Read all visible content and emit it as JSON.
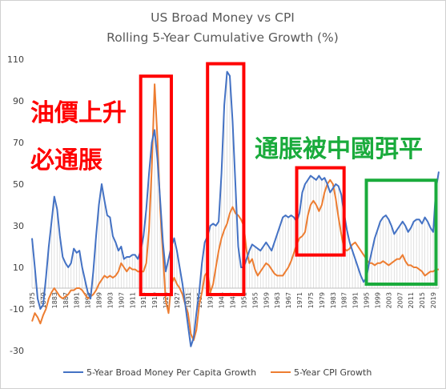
{
  "chart_data": {
    "type": "line",
    "title": "US Broad Money vs CPI",
    "subtitle": "Rolling 5-Year Cumulative Growth (%)",
    "ylim": [
      -30,
      110
    ],
    "yticks": [
      -30,
      -10,
      10,
      30,
      50,
      70,
      90,
      110
    ],
    "xlim": [
      1875,
      2021
    ],
    "xticks": [
      1875,
      1879,
      1883,
      1887,
      1891,
      1895,
      1899,
      1903,
      1907,
      1911,
      1915,
      1919,
      1923,
      1927,
      1931,
      1935,
      1939,
      1943,
      1947,
      1951,
      1955,
      1959,
      1963,
      1967,
      1971,
      1975,
      1979,
      1983,
      1987,
      1991,
      1995,
      1999,
      2003,
      2007,
      2011,
      2015,
      2019
    ],
    "grid": false,
    "legend_position": "bottom",
    "series": [
      {
        "name": "5-Year Broad Money Per Capita Growth",
        "color": "#4472c4",
        "points": [
          [
            1875,
            24
          ],
          [
            1876,
            10
          ],
          [
            1877,
            -5
          ],
          [
            1878,
            -10
          ],
          [
            1879,
            -8
          ],
          [
            1880,
            5
          ],
          [
            1881,
            20
          ],
          [
            1882,
            32
          ],
          [
            1883,
            44
          ],
          [
            1884,
            38
          ],
          [
            1885,
            25
          ],
          [
            1886,
            15
          ],
          [
            1887,
            12
          ],
          [
            1888,
            10
          ],
          [
            1889,
            12
          ],
          [
            1890,
            19
          ],
          [
            1891,
            17
          ],
          [
            1892,
            18
          ],
          [
            1893,
            10
          ],
          [
            1894,
            4
          ],
          [
            1895,
            -2
          ],
          [
            1896,
            -5
          ],
          [
            1897,
            8
          ],
          [
            1898,
            25
          ],
          [
            1899,
            40
          ],
          [
            1900,
            50
          ],
          [
            1901,
            42
          ],
          [
            1902,
            35
          ],
          [
            1903,
            34
          ],
          [
            1904,
            25
          ],
          [
            1905,
            22
          ],
          [
            1906,
            18
          ],
          [
            1907,
            20
          ],
          [
            1908,
            14
          ],
          [
            1909,
            15
          ],
          [
            1910,
            15
          ],
          [
            1911,
            16
          ],
          [
            1912,
            16
          ],
          [
            1913,
            14
          ],
          [
            1914,
            18
          ],
          [
            1915,
            25
          ],
          [
            1916,
            38
          ],
          [
            1917,
            55
          ],
          [
            1918,
            70
          ],
          [
            1919,
            76
          ],
          [
            1920,
            62
          ],
          [
            1921,
            42
          ],
          [
            1922,
            22
          ],
          [
            1923,
            8
          ],
          [
            1924,
            14
          ],
          [
            1925,
            20
          ],
          [
            1926,
            24
          ],
          [
            1927,
            18
          ],
          [
            1928,
            10
          ],
          [
            1929,
            2
          ],
          [
            1930,
            -8
          ],
          [
            1931,
            -18
          ],
          [
            1932,
            -28
          ],
          [
            1933,
            -24
          ],
          [
            1934,
            -12
          ],
          [
            1935,
            -2
          ],
          [
            1936,
            12
          ],
          [
            1937,
            22
          ],
          [
            1938,
            25
          ],
          [
            1939,
            30
          ],
          [
            1940,
            31
          ],
          [
            1941,
            30
          ],
          [
            1942,
            32
          ],
          [
            1943,
            55
          ],
          [
            1944,
            88
          ],
          [
            1945,
            104
          ],
          [
            1946,
            102
          ],
          [
            1947,
            80
          ],
          [
            1948,
            50
          ],
          [
            1949,
            20
          ],
          [
            1950,
            10
          ],
          [
            1951,
            10
          ],
          [
            1952,
            14
          ],
          [
            1953,
            18
          ],
          [
            1954,
            21
          ],
          [
            1955,
            20
          ],
          [
            1956,
            19
          ],
          [
            1957,
            18
          ],
          [
            1958,
            20
          ],
          [
            1959,
            22
          ],
          [
            1960,
            20
          ],
          [
            1961,
            18
          ],
          [
            1962,
            22
          ],
          [
            1963,
            26
          ],
          [
            1964,
            30
          ],
          [
            1965,
            34
          ],
          [
            1966,
            35
          ],
          [
            1967,
            34
          ],
          [
            1968,
            35
          ],
          [
            1969,
            34
          ],
          [
            1970,
            32
          ],
          [
            1971,
            36
          ],
          [
            1972,
            46
          ],
          [
            1973,
            50
          ],
          [
            1974,
            52
          ],
          [
            1975,
            54
          ],
          [
            1976,
            53
          ],
          [
            1977,
            52
          ],
          [
            1978,
            54
          ],
          [
            1979,
            52
          ],
          [
            1980,
            53
          ],
          [
            1981,
            50
          ],
          [
            1982,
            46
          ],
          [
            1983,
            48
          ],
          [
            1984,
            50
          ],
          [
            1985,
            49
          ],
          [
            1986,
            45
          ],
          [
            1987,
            36
          ],
          [
            1988,
            28
          ],
          [
            1989,
            22
          ],
          [
            1990,
            18
          ],
          [
            1991,
            14
          ],
          [
            1992,
            10
          ],
          [
            1993,
            6
          ],
          [
            1994,
            3
          ],
          [
            1995,
            5
          ],
          [
            1996,
            12
          ],
          [
            1997,
            18
          ],
          [
            1998,
            24
          ],
          [
            1999,
            28
          ],
          [
            2000,
            32
          ],
          [
            2001,
            34
          ],
          [
            2002,
            35
          ],
          [
            2003,
            33
          ],
          [
            2004,
            30
          ],
          [
            2005,
            26
          ],
          [
            2006,
            28
          ],
          [
            2007,
            30
          ],
          [
            2008,
            32
          ],
          [
            2009,
            30
          ],
          [
            2010,
            27
          ],
          [
            2011,
            29
          ],
          [
            2012,
            32
          ],
          [
            2013,
            33
          ],
          [
            2014,
            33
          ],
          [
            2015,
            31
          ],
          [
            2016,
            34
          ],
          [
            2017,
            32
          ],
          [
            2018,
            29
          ],
          [
            2019,
            27
          ],
          [
            2020,
            48
          ],
          [
            2021,
            56
          ]
        ]
      },
      {
        "name": "5-Year CPI Growth",
        "color": "#ed7d31",
        "points": [
          [
            1875,
            -16
          ],
          [
            1876,
            -12
          ],
          [
            1877,
            -14
          ],
          [
            1878,
            -17
          ],
          [
            1879,
            -13
          ],
          [
            1880,
            -10
          ],
          [
            1881,
            -5
          ],
          [
            1882,
            -2
          ],
          [
            1883,
            0
          ],
          [
            1884,
            -2
          ],
          [
            1885,
            -4
          ],
          [
            1886,
            -5
          ],
          [
            1887,
            -4
          ],
          [
            1888,
            -3
          ],
          [
            1889,
            -1
          ],
          [
            1890,
            -1
          ],
          [
            1891,
            0
          ],
          [
            1892,
            0
          ],
          [
            1893,
            -1
          ],
          [
            1894,
            -3
          ],
          [
            1895,
            -5
          ],
          [
            1896,
            -4
          ],
          [
            1897,
            -3
          ],
          [
            1898,
            -1
          ],
          [
            1899,
            2
          ],
          [
            1900,
            4
          ],
          [
            1901,
            6
          ],
          [
            1902,
            5
          ],
          [
            1903,
            6
          ],
          [
            1904,
            5
          ],
          [
            1905,
            6
          ],
          [
            1906,
            8
          ],
          [
            1907,
            12
          ],
          [
            1908,
            10
          ],
          [
            1909,
            8
          ],
          [
            1910,
            10
          ],
          [
            1911,
            9
          ],
          [
            1912,
            9
          ],
          [
            1913,
            8
          ],
          [
            1914,
            8
          ],
          [
            1915,
            8
          ],
          [
            1916,
            12
          ],
          [
            1917,
            28
          ],
          [
            1918,
            58
          ],
          [
            1919,
            98
          ],
          [
            1920,
            72
          ],
          [
            1921,
            38
          ],
          [
            1922,
            16
          ],
          [
            1923,
            -6
          ],
          [
            1924,
            -12
          ],
          [
            1925,
            2
          ],
          [
            1926,
            5
          ],
          [
            1927,
            2
          ],
          [
            1928,
            0
          ],
          [
            1929,
            -3
          ],
          [
            1930,
            -8
          ],
          [
            1931,
            -12
          ],
          [
            1932,
            -22
          ],
          [
            1933,
            -25
          ],
          [
            1934,
            -20
          ],
          [
            1935,
            -8
          ],
          [
            1936,
            -2
          ],
          [
            1937,
            6
          ],
          [
            1938,
            8
          ],
          [
            1939,
            -2
          ],
          [
            1940,
            2
          ],
          [
            1941,
            10
          ],
          [
            1942,
            18
          ],
          [
            1943,
            24
          ],
          [
            1944,
            28
          ],
          [
            1945,
            31
          ],
          [
            1946,
            36
          ],
          [
            1947,
            39
          ],
          [
            1948,
            36
          ],
          [
            1949,
            35
          ],
          [
            1950,
            33
          ],
          [
            1951,
            30
          ],
          [
            1952,
            18
          ],
          [
            1953,
            12
          ],
          [
            1954,
            14
          ],
          [
            1955,
            9
          ],
          [
            1956,
            6
          ],
          [
            1957,
            8
          ],
          [
            1958,
            10
          ],
          [
            1959,
            12
          ],
          [
            1960,
            11
          ],
          [
            1961,
            9
          ],
          [
            1962,
            7
          ],
          [
            1963,
            6
          ],
          [
            1964,
            6
          ],
          [
            1965,
            6
          ],
          [
            1966,
            8
          ],
          [
            1967,
            10
          ],
          [
            1968,
            13
          ],
          [
            1969,
            17
          ],
          [
            1970,
            21
          ],
          [
            1971,
            24
          ],
          [
            1972,
            25
          ],
          [
            1973,
            27
          ],
          [
            1974,
            35
          ],
          [
            1975,
            40
          ],
          [
            1976,
            42
          ],
          [
            1977,
            40
          ],
          [
            1978,
            37
          ],
          [
            1979,
            40
          ],
          [
            1980,
            46
          ],
          [
            1981,
            50
          ],
          [
            1982,
            52
          ],
          [
            1983,
            50
          ],
          [
            1984,
            43
          ],
          [
            1985,
            34
          ],
          [
            1986,
            26
          ],
          [
            1987,
            19
          ],
          [
            1988,
            18
          ],
          [
            1989,
            19
          ],
          [
            1990,
            21
          ],
          [
            1991,
            22
          ],
          [
            1992,
            20
          ],
          [
            1993,
            18
          ],
          [
            1994,
            16
          ],
          [
            1995,
            14
          ],
          [
            1996,
            12
          ],
          [
            1997,
            12
          ],
          [
            1998,
            11
          ],
          [
            1999,
            12
          ],
          [
            2000,
            12
          ],
          [
            2001,
            13
          ],
          [
            2002,
            12
          ],
          [
            2003,
            11
          ],
          [
            2004,
            12
          ],
          [
            2005,
            13
          ],
          [
            2006,
            14
          ],
          [
            2007,
            14
          ],
          [
            2008,
            16
          ],
          [
            2009,
            13
          ],
          [
            2010,
            11
          ],
          [
            2011,
            11
          ],
          [
            2012,
            10
          ],
          [
            2013,
            10
          ],
          [
            2014,
            9
          ],
          [
            2015,
            8
          ],
          [
            2016,
            6
          ],
          [
            2017,
            7
          ],
          [
            2018,
            8
          ],
          [
            2019,
            8
          ],
          [
            2020,
            9
          ],
          [
            2021,
            9
          ]
        ]
      }
    ],
    "annotations": [
      {
        "text": "油價上升",
        "color": "#ff0000"
      },
      {
        "text": "必通脹",
        "color": "#ff0000"
      },
      {
        "text": "通脹被中國弭平",
        "color": "#1aab3c"
      }
    ],
    "highlight_boxes": [
      {
        "color": "#ff0000",
        "range": [
          1914,
          1925
        ]
      },
      {
        "color": "#ff0000",
        "range": [
          1938,
          1951
        ]
      },
      {
        "color": "#ff0000",
        "range": [
          1970,
          1987
        ]
      },
      {
        "color": "#1aab3c",
        "range": [
          1995,
          2020
        ]
      }
    ]
  }
}
